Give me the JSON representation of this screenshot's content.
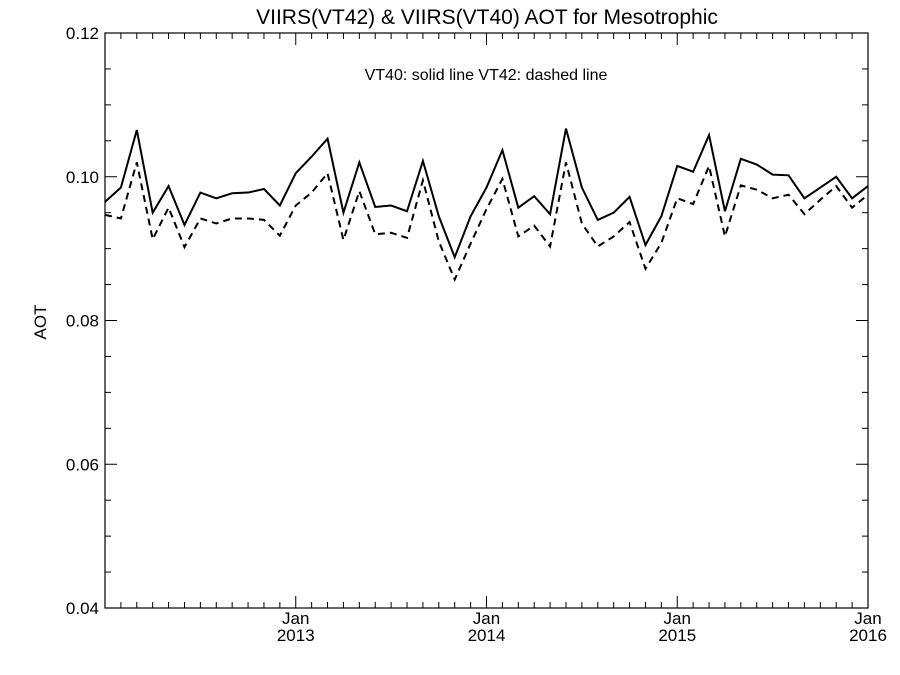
{
  "chart_data": {
    "type": "line",
    "title": "VIIRS(VT42) & VIIRS(VT40)  AOT for Mesotrophic",
    "annotation": "VT40: solid line   VT42: dashed line",
    "ylabel": "AOT",
    "xlabel": "",
    "ylim": [
      0.04,
      0.12
    ],
    "y_ticks": [
      "0.04",
      "0.06",
      "0.08",
      "0.10",
      "0.12"
    ],
    "x_range": [
      "2012-01",
      "2016-01"
    ],
    "x_ticks": [
      {
        "month": "2013-01",
        "line1": "Jan",
        "line2": "2013"
      },
      {
        "month": "2014-01",
        "line1": "Jan",
        "line2": "2014"
      },
      {
        "month": "2015-01",
        "line1": "Jan",
        "line2": "2015"
      },
      {
        "month": "2016-01",
        "line1": "Jan",
        "line2": "2016"
      }
    ],
    "x": [
      "2012-01",
      "2012-02",
      "2012-03",
      "2012-04",
      "2012-05",
      "2012-06",
      "2012-07",
      "2012-08",
      "2012-09",
      "2012-10",
      "2012-11",
      "2012-12",
      "2013-01",
      "2013-02",
      "2013-03",
      "2013-04",
      "2013-05",
      "2013-06",
      "2013-07",
      "2013-08",
      "2013-09",
      "2013-10",
      "2013-11",
      "2013-12",
      "2014-01",
      "2014-02",
      "2014-03",
      "2014-04",
      "2014-05",
      "2014-06",
      "2014-07",
      "2014-08",
      "2014-09",
      "2014-10",
      "2014-11",
      "2014-12",
      "2015-01",
      "2015-02",
      "2015-03",
      "2015-04",
      "2015-05",
      "2015-06",
      "2015-07",
      "2015-08",
      "2015-09",
      "2015-10",
      "2015-11",
      "2015-12",
      "2016-01"
    ],
    "series": [
      {
        "name": "VT40",
        "style": "solid",
        "values": [
          0.0965,
          0.0985,
          0.1065,
          0.095,
          0.0987,
          0.0933,
          0.0978,
          0.097,
          0.0977,
          0.0978,
          0.0983,
          0.096,
          0.1005,
          0.1028,
          0.1053,
          0.095,
          0.102,
          0.0958,
          0.096,
          0.0952,
          0.1022,
          0.0945,
          0.0888,
          0.0945,
          0.0985,
          0.1037,
          0.0957,
          0.0973,
          0.0948,
          0.1067,
          0.0985,
          0.094,
          0.095,
          0.0972,
          0.0905,
          0.0945,
          0.1015,
          0.1007,
          0.1058,
          0.0952,
          0.1025,
          0.1017,
          0.1003,
          0.1002,
          0.097,
          0.0985,
          0.1,
          0.097,
          0.0987
        ]
      },
      {
        "name": "VT42",
        "style": "dashed",
        "values": [
          0.0947,
          0.0942,
          0.102,
          0.0913,
          0.0957,
          0.0902,
          0.0942,
          0.0935,
          0.0942,
          0.0942,
          0.094,
          0.0918,
          0.096,
          0.0978,
          0.1005,
          0.0912,
          0.098,
          0.092,
          0.0922,
          0.0915,
          0.0995,
          0.091,
          0.0857,
          0.0907,
          0.0955,
          0.0997,
          0.0917,
          0.0932,
          0.0903,
          0.102,
          0.0935,
          0.0903,
          0.0917,
          0.0937,
          0.0872,
          0.0908,
          0.097,
          0.0962,
          0.1015,
          0.0917,
          0.0988,
          0.0982,
          0.097,
          0.0975,
          0.0948,
          0.0968,
          0.0987,
          0.0957,
          0.0975
        ]
      }
    ]
  }
}
